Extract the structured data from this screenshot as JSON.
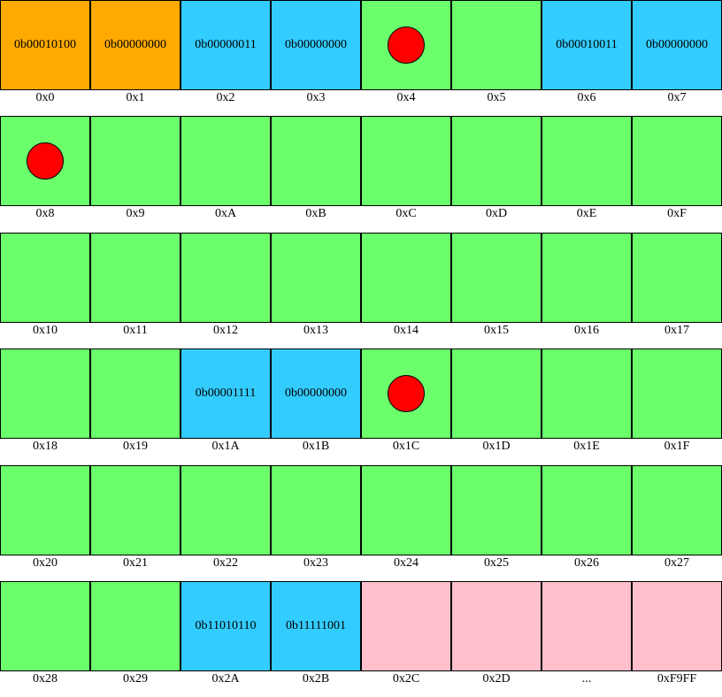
{
  "colors": {
    "orange": "#ffaa00",
    "blue": "#33ccff",
    "green": "#6bff6b",
    "pink": "#ffc0cb",
    "marker": "#ff0000"
  },
  "rows": [
    [
      {
        "addr": "0x0",
        "color": "orange",
        "text": "0b00010100"
      },
      {
        "addr": "0x1",
        "color": "orange",
        "text": "0b00000000"
      },
      {
        "addr": "0x2",
        "color": "blue",
        "text": "0b00000011"
      },
      {
        "addr": "0x3",
        "color": "blue",
        "text": "0b00000000"
      },
      {
        "addr": "0x4",
        "color": "green",
        "marker": true
      },
      {
        "addr": "0x5",
        "color": "green"
      },
      {
        "addr": "0x6",
        "color": "blue",
        "text": "0b00010011"
      },
      {
        "addr": "0x7",
        "color": "blue",
        "text": "0b00000000"
      }
    ],
    [
      {
        "addr": "0x8",
        "color": "green",
        "marker": true
      },
      {
        "addr": "0x9",
        "color": "green"
      },
      {
        "addr": "0xA",
        "color": "green"
      },
      {
        "addr": "0xB",
        "color": "green"
      },
      {
        "addr": "0xC",
        "color": "green"
      },
      {
        "addr": "0xD",
        "color": "green"
      },
      {
        "addr": "0xE",
        "color": "green"
      },
      {
        "addr": "0xF",
        "color": "green"
      }
    ],
    [
      {
        "addr": "0x10",
        "color": "green"
      },
      {
        "addr": "0x11",
        "color": "green"
      },
      {
        "addr": "0x12",
        "color": "green"
      },
      {
        "addr": "0x13",
        "color": "green"
      },
      {
        "addr": "0x14",
        "color": "green"
      },
      {
        "addr": "0x15",
        "color": "green"
      },
      {
        "addr": "0x16",
        "color": "green"
      },
      {
        "addr": "0x17",
        "color": "green"
      }
    ],
    [
      {
        "addr": "0x18",
        "color": "green"
      },
      {
        "addr": "0x19",
        "color": "green"
      },
      {
        "addr": "0x1A",
        "color": "blue",
        "text": "0b00001111"
      },
      {
        "addr": "0x1B",
        "color": "blue",
        "text": "0b00000000"
      },
      {
        "addr": "0x1C",
        "color": "green",
        "marker": true
      },
      {
        "addr": "0x1D",
        "color": "green"
      },
      {
        "addr": "0x1E",
        "color": "green"
      },
      {
        "addr": "0x1F",
        "color": "green"
      }
    ],
    [
      {
        "addr": "0x20",
        "color": "green"
      },
      {
        "addr": "0x21",
        "color": "green"
      },
      {
        "addr": "0x22",
        "color": "green"
      },
      {
        "addr": "0x23",
        "color": "green"
      },
      {
        "addr": "0x24",
        "color": "green"
      },
      {
        "addr": "0x25",
        "color": "green"
      },
      {
        "addr": "0x26",
        "color": "green"
      },
      {
        "addr": "0x27",
        "color": "green"
      }
    ],
    [
      {
        "addr": "0x28",
        "color": "green"
      },
      {
        "addr": "0x29",
        "color": "green"
      },
      {
        "addr": "0x2A",
        "color": "blue",
        "text": "0b11010110"
      },
      {
        "addr": "0x2B",
        "color": "blue",
        "text": "0b11111001"
      },
      {
        "addr": "0x2C",
        "color": "pink"
      },
      {
        "addr": "0x2D",
        "color": "pink"
      },
      {
        "addr": "...",
        "color": "pink"
      },
      {
        "addr": "0xF9FF",
        "color": "pink"
      }
    ]
  ]
}
